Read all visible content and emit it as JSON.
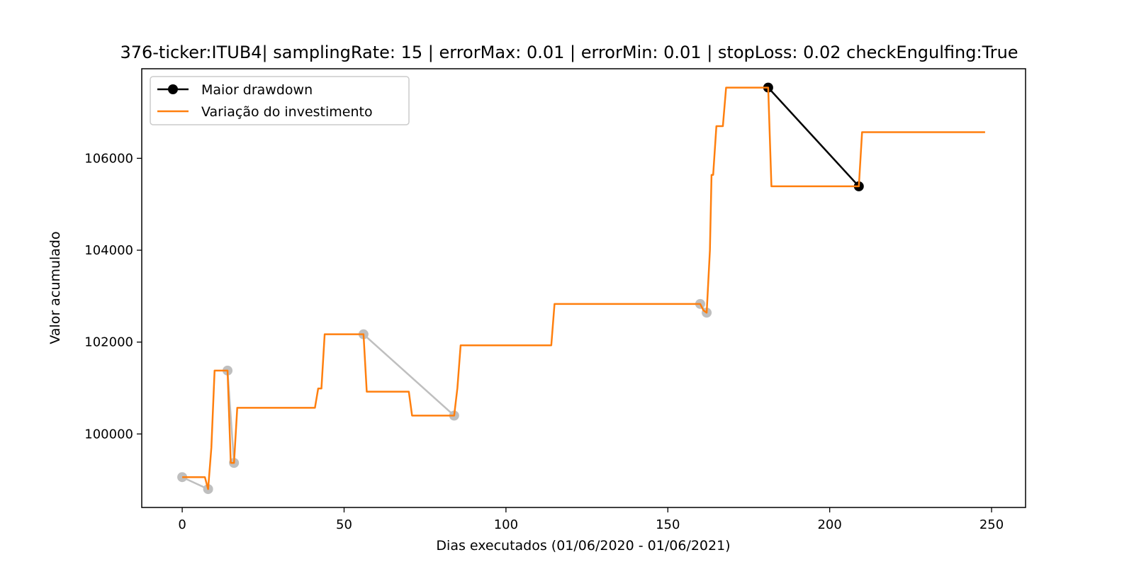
{
  "chart_data": {
    "type": "line",
    "title": "376-ticker:ITUB4| samplingRate: 15 | errorMax: 0.01 | errorMin: 0.01 | stopLoss: 0.02 checkEngulfing:True",
    "xlabel": "Dias executados (01/06/2020 - 01/06/2021)",
    "ylabel": "Valor acumulado",
    "xlim": [
      -12.5,
      260.5
    ],
    "ylim": [
      98400,
      107950
    ],
    "x_ticks": [
      0,
      50,
      100,
      150,
      200,
      250
    ],
    "y_ticks": [
      100000,
      102000,
      104000,
      106000
    ],
    "x_tick_labels": [
      "0",
      "50",
      "100",
      "150",
      "200",
      "250"
    ],
    "y_tick_labels": [
      "100000",
      "102000",
      "104000",
      "106000"
    ],
    "grid": false,
    "legend_position": "upper-left",
    "colors": {
      "investment": "#ff7f0e",
      "drawdown": "#000000",
      "minor_drawdowns": "#bfbfbf"
    },
    "series": [
      {
        "name": "Maior drawdown",
        "style": "line-marker",
        "points": [
          [
            181,
            107540
          ],
          [
            209,
            105390
          ]
        ]
      },
      {
        "name": "Variação do investimento",
        "style": "line",
        "points": [
          [
            0,
            99060
          ],
          [
            7,
            99060
          ],
          [
            8,
            98800
          ],
          [
            9,
            99700
          ],
          [
            10,
            101380
          ],
          [
            14,
            101380
          ],
          [
            15,
            99370
          ],
          [
            16,
            99370
          ],
          [
            17,
            100570
          ],
          [
            41,
            100570
          ],
          [
            42,
            100990
          ],
          [
            43,
            100990
          ],
          [
            44,
            102170
          ],
          [
            56,
            102170
          ],
          [
            57,
            100920
          ],
          [
            70,
            100920
          ],
          [
            71,
            100400
          ],
          [
            84,
            100400
          ],
          [
            85,
            101000
          ],
          [
            86,
            101930
          ],
          [
            114,
            101930
          ],
          [
            115,
            102830
          ],
          [
            160,
            102830
          ],
          [
            161,
            102690
          ],
          [
            162,
            102640
          ],
          [
            163,
            104000
          ],
          [
            163.5,
            105640
          ],
          [
            164,
            105640
          ],
          [
            165,
            106700
          ],
          [
            167,
            106700
          ],
          [
            168,
            107540
          ],
          [
            181,
            107540
          ],
          [
            182,
            105390
          ],
          [
            209,
            105390
          ],
          [
            210,
            106570
          ],
          [
            248,
            106570
          ]
        ]
      }
    ],
    "minor_drawdowns": [
      [
        [
          0,
          99060
        ],
        [
          8,
          98800
        ]
      ],
      [
        [
          14,
          101380
        ],
        [
          16,
          99370
        ]
      ],
      [
        [
          56,
          102170
        ],
        [
          84,
          100400
        ]
      ],
      [
        [
          160,
          102830
        ],
        [
          162,
          102640
        ]
      ]
    ]
  }
}
